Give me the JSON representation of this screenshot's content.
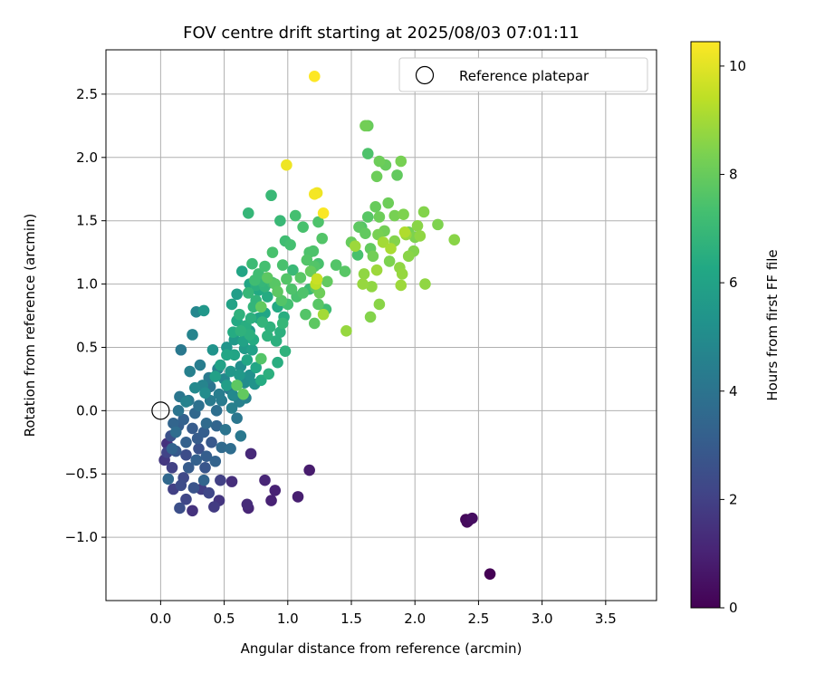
{
  "chart_data": {
    "type": "scatter",
    "title": "FOV centre drift starting at 2025/08/03 07:01:11",
    "xlabel": "Angular distance from reference (arcmin)",
    "ylabel": "Rotation from reference (arcmin)",
    "xlim": [
      -0.43,
      3.9
    ],
    "ylim": [
      -1.5,
      2.85
    ],
    "xticks": [
      0.0,
      0.5,
      1.0,
      1.5,
      2.0,
      2.5,
      3.0,
      3.5
    ],
    "xtick_labels": [
      "0.0",
      "0.5",
      "1.0",
      "1.5",
      "2.0",
      "2.5",
      "3.0",
      "3.5"
    ],
    "yticks": [
      -1.0,
      -0.5,
      0.0,
      0.5,
      1.0,
      1.5,
      2.0,
      2.5
    ],
    "ytick_labels": [
      "−1.0",
      "−0.5",
      "0.0",
      "0.5",
      "1.0",
      "1.5",
      "2.0",
      "2.5"
    ],
    "grid": true,
    "legend": {
      "placement": "top-right",
      "entries": [
        "Reference platepar"
      ]
    },
    "reference_point": {
      "x": 0.0,
      "y": 0.0,
      "label": "Reference platepar"
    },
    "colorbar": {
      "label": "Hours from first FF file",
      "colormap": "viridis",
      "range": [
        0,
        10.45
      ],
      "ticks": [
        0,
        2,
        4,
        6,
        8,
        10
      ],
      "tick_labels": [
        "0",
        "2",
        "4",
        "6",
        "8",
        "10"
      ]
    },
    "points": [
      [
        2.59,
        -1.29,
        0.0
      ],
      [
        2.4,
        -0.86,
        0.2
      ],
      [
        2.42,
        -0.87,
        0.3
      ],
      [
        2.45,
        -0.85,
        0.4
      ],
      [
        2.41,
        -0.88,
        0.3
      ],
      [
        1.17,
        -0.47,
        0.8
      ],
      [
        1.08,
        -0.68,
        0.9
      ],
      [
        0.9,
        -0.63,
        1.0
      ],
      [
        0.82,
        -0.55,
        1.1
      ],
      [
        0.87,
        -0.71,
        1.0
      ],
      [
        0.71,
        -0.34,
        1.2
      ],
      [
        0.69,
        -0.77,
        1.1
      ],
      [
        0.68,
        -0.74,
        1.3
      ],
      [
        0.56,
        -0.56,
        1.4
      ],
      [
        0.46,
        -0.71,
        1.6
      ],
      [
        0.42,
        -0.76,
        1.8
      ],
      [
        0.25,
        -0.79,
        1.5
      ],
      [
        0.2,
        -0.7,
        2.2
      ],
      [
        0.15,
        -0.77,
        2.5
      ],
      [
        0.1,
        -0.62,
        2.0
      ],
      [
        0.05,
        -0.26,
        1.5
      ],
      [
        0.03,
        -0.39,
        1.7
      ],
      [
        0.09,
        -0.45,
        2.0
      ],
      [
        0.18,
        -0.53,
        2.3
      ],
      [
        0.2,
        -0.35,
        2.4
      ],
      [
        0.3,
        -0.3,
        2.6
      ],
      [
        0.35,
        -0.45,
        2.8
      ],
      [
        0.38,
        -0.65,
        2.2
      ],
      [
        0.26,
        -0.61,
        2.7
      ],
      [
        0.12,
        -0.32,
        2.9
      ],
      [
        0.22,
        -0.45,
        3.0
      ],
      [
        0.28,
        -0.39,
        3.2
      ],
      [
        0.34,
        -0.55,
        3.4
      ],
      [
        0.06,
        -0.54,
        3.5
      ],
      [
        0.09,
        -0.3,
        3.3
      ],
      [
        0.14,
        -0.12,
        3.1
      ],
      [
        0.18,
        -0.07,
        3.2
      ],
      [
        0.25,
        -0.14,
        3.0
      ],
      [
        0.4,
        -0.25,
        2.9
      ],
      [
        0.43,
        -0.4,
        3.3
      ],
      [
        0.48,
        -0.29,
        3.6
      ],
      [
        0.55,
        -0.3,
        3.7
      ],
      [
        0.51,
        -0.15,
        4.0
      ],
      [
        0.6,
        -0.06,
        4.1
      ],
      [
        0.44,
        0.0,
        3.8
      ],
      [
        0.36,
        -0.1,
        3.6
      ],
      [
        0.3,
        0.04,
        3.9
      ],
      [
        0.22,
        0.08,
        4.2
      ],
      [
        0.15,
        0.11,
        4.1
      ],
      [
        0.27,
        -0.02,
        3.5
      ],
      [
        0.39,
        0.08,
        4.3
      ],
      [
        0.46,
        0.13,
        4.4
      ],
      [
        0.54,
        0.17,
        4.2
      ],
      [
        0.62,
        0.07,
        4.5
      ],
      [
        0.67,
        0.1,
        4.6
      ],
      [
        0.33,
        0.2,
        4.7
      ],
      [
        0.38,
        0.26,
        4.3
      ],
      [
        0.45,
        0.33,
        4.6
      ],
      [
        0.5,
        0.25,
        4.8
      ],
      [
        0.57,
        0.12,
        4.9
      ],
      [
        0.66,
        0.22,
        5.0
      ],
      [
        0.63,
        0.35,
        5.1
      ],
      [
        0.7,
        0.28,
        5.2
      ],
      [
        0.74,
        0.21,
        5.3
      ],
      [
        0.31,
        0.36,
        4.4
      ],
      [
        0.23,
        0.31,
        4.5
      ],
      [
        0.16,
        0.48,
        4.2
      ],
      [
        0.25,
        0.6,
        4.7
      ],
      [
        0.28,
        0.78,
        4.8
      ],
      [
        0.34,
        0.79,
        5.5
      ],
      [
        0.41,
        0.48,
        5.3
      ],
      [
        0.52,
        0.5,
        5.4
      ],
      [
        0.58,
        0.56,
        5.6
      ],
      [
        0.66,
        0.49,
        5.7
      ],
      [
        0.72,
        0.48,
        5.9
      ],
      [
        0.56,
        0.84,
        6.0
      ],
      [
        0.6,
        0.92,
        5.8
      ],
      [
        0.64,
        1.1,
        6.1
      ],
      [
        0.7,
        1.0,
        6.2
      ],
      [
        0.77,
        0.95,
        6.3
      ],
      [
        0.84,
        0.9,
        6.4
      ],
      [
        0.92,
        0.82,
        6.3
      ],
      [
        0.97,
        0.74,
        6.5
      ],
      [
        0.94,
        0.62,
        6.6
      ],
      [
        0.86,
        0.66,
        6.7
      ],
      [
        0.8,
        0.7,
        6.8
      ],
      [
        0.7,
        0.6,
        6.6
      ],
      [
        0.62,
        0.76,
        6.7
      ],
      [
        0.75,
        0.34,
        6.2
      ],
      [
        0.79,
        0.24,
        6.4
      ],
      [
        0.85,
        0.29,
        6.6
      ],
      [
        0.92,
        0.38,
        6.5
      ],
      [
        0.98,
        0.47,
        6.7
      ],
      [
        0.69,
        1.56,
        6.9
      ],
      [
        0.87,
        1.7,
        7.0
      ],
      [
        0.72,
        1.16,
        7.1
      ],
      [
        0.77,
        1.08,
        7.2
      ],
      [
        0.82,
        1.14,
        7.3
      ],
      [
        0.88,
        1.25,
        7.4
      ],
      [
        0.98,
        1.34,
        7.2
      ],
      [
        1.02,
        1.31,
        7.3
      ],
      [
        1.06,
        1.54,
        7.3
      ],
      [
        1.12,
        1.45,
        7.4
      ],
      [
        1.17,
        1.25,
        7.5
      ],
      [
        1.21,
        1.14,
        7.6
      ],
      [
        1.24,
        1.49,
        7.5
      ],
      [
        1.27,
        1.36,
        7.6
      ],
      [
        1.1,
        1.05,
        7.7
      ],
      [
        1.03,
        0.96,
        7.5
      ],
      [
        0.95,
        0.87,
        7.6
      ],
      [
        0.9,
        1.0,
        7.7
      ],
      [
        0.84,
        1.05,
        7.8
      ],
      [
        0.79,
        0.82,
        7.9
      ],
      [
        1.22,
        0.97,
        7.8
      ],
      [
        1.14,
        0.76,
        7.6
      ],
      [
        1.24,
        0.84,
        7.7
      ],
      [
        1.21,
        0.69,
        7.8
      ],
      [
        0.6,
        0.2,
        7.8
      ],
      [
        0.65,
        0.13,
        7.9
      ],
      [
        0.79,
        0.41,
        7.6
      ],
      [
        1.38,
        1.15,
        7.6
      ],
      [
        1.45,
        1.1,
        7.7
      ],
      [
        1.56,
        1.45,
        7.8
      ],
      [
        1.61,
        1.4,
        7.9
      ],
      [
        1.65,
        1.28,
        7.9
      ],
      [
        1.69,
        1.61,
        8.0
      ],
      [
        1.7,
        1.85,
        8.1
      ],
      [
        1.61,
        2.25,
        8.2
      ],
      [
        1.63,
        2.25,
        8.0
      ],
      [
        1.72,
        1.97,
        8.1
      ],
      [
        1.77,
        1.94,
        8.0
      ],
      [
        1.86,
        1.86,
        7.9
      ],
      [
        1.89,
        1.97,
        8.3
      ],
      [
        1.72,
        1.53,
        8.1
      ],
      [
        1.76,
        1.42,
        8.2
      ],
      [
        1.79,
        1.64,
        8.1
      ],
      [
        1.84,
        1.54,
        8.3
      ],
      [
        1.91,
        1.55,
        8.4
      ],
      [
        1.95,
        1.41,
        8.3
      ],
      [
        2.0,
        1.37,
        8.4
      ],
      [
        2.07,
        1.57,
        8.5
      ],
      [
        2.02,
        1.46,
        8.6
      ],
      [
        2.18,
        1.47,
        8.4
      ],
      [
        2.31,
        1.35,
        8.6
      ],
      [
        1.99,
        1.26,
        8.5
      ],
      [
        1.88,
        1.13,
        8.7
      ],
      [
        1.9,
        1.08,
        8.8
      ],
      [
        2.08,
        1.0,
        8.7
      ],
      [
        1.89,
        0.99,
        8.9
      ],
      [
        1.72,
        0.84,
        8.6
      ],
      [
        1.65,
        0.74,
        8.5
      ],
      [
        1.6,
        1.08,
        8.7
      ],
      [
        1.59,
        1.0,
        8.8
      ],
      [
        1.53,
        1.3,
        8.9
      ],
      [
        1.75,
        1.33,
        9.0
      ],
      [
        1.81,
        1.28,
        9.1
      ],
      [
        1.92,
        1.41,
        9.2
      ],
      [
        1.46,
        0.63,
        8.8
      ],
      [
        1.28,
        0.76,
        9.0
      ],
      [
        1.22,
        1.0,
        9.4
      ],
      [
        1.23,
        1.04,
        9.6
      ],
      [
        0.99,
        1.94,
        10.2
      ],
      [
        1.21,
        1.71,
        10.3
      ],
      [
        1.23,
        1.72,
        10.2
      ],
      [
        1.28,
        1.56,
        10.4
      ],
      [
        1.21,
        2.64,
        10.45
      ],
      [
        1.63,
        2.03,
        7.5
      ],
      [
        1.58,
        1.45,
        7.6
      ],
      [
        1.63,
        1.53,
        7.7
      ],
      [
        1.55,
        1.23,
        7.4
      ],
      [
        1.3,
        0.8,
        7.2
      ],
      [
        1.17,
        0.96,
        7.1
      ],
      [
        1.04,
        1.11,
        7.0
      ],
      [
        0.94,
        1.5,
        7.0
      ],
      [
        0.8,
        1.02,
        6.9
      ],
      [
        0.75,
        0.87,
        6.8
      ],
      [
        0.67,
        0.67,
        6.5
      ],
      [
        0.57,
        0.62,
        6.4
      ],
      [
        0.52,
        0.44,
        6.2
      ],
      [
        0.58,
        0.44,
        6.1
      ],
      [
        0.47,
        0.36,
        6.0
      ],
      [
        0.43,
        0.27,
        5.9
      ],
      [
        0.52,
        0.2,
        5.8
      ],
      [
        0.35,
        0.14,
        5.0
      ],
      [
        0.27,
        0.18,
        4.9
      ],
      [
        0.2,
        0.07,
        4.6
      ],
      [
        0.14,
        0.0,
        4.0
      ],
      [
        0.1,
        -0.1,
        3.4
      ],
      [
        0.08,
        -0.2,
        2.6
      ],
      [
        0.05,
        -0.33,
        2.1
      ],
      [
        0.12,
        -0.17,
        3.7
      ],
      [
        0.2,
        -0.25,
        3.2
      ],
      [
        0.29,
        -0.22,
        3.0
      ],
      [
        0.34,
        -0.17,
        3.1
      ],
      [
        0.44,
        -0.12,
        3.4
      ],
      [
        0.36,
        -0.36,
        3.1
      ],
      [
        0.47,
        -0.55,
        2.0
      ],
      [
        0.32,
        -0.62,
        1.9
      ],
      [
        0.16,
        -0.59,
        2.4
      ],
      [
        0.63,
        -0.2,
        4.2
      ],
      [
        0.56,
        0.02,
        4.5
      ],
      [
        0.48,
        0.08,
        4.3
      ],
      [
        0.39,
        0.19,
        4.0
      ],
      [
        0.7,
        0.63,
        5.6
      ],
      [
        0.77,
        0.73,
        6.0
      ],
      [
        0.82,
        0.77,
        6.2
      ],
      [
        0.88,
        1.01,
        7.1
      ],
      [
        0.74,
        1.03,
        7.2
      ],
      [
        0.69,
        0.93,
        6.9
      ],
      [
        0.73,
        0.82,
        6.8
      ],
      [
        0.84,
        0.59,
        6.7
      ],
      [
        0.91,
        0.55,
        6.6
      ],
      [
        0.96,
        0.69,
        6.9
      ],
      [
        1.0,
        0.84,
        7.3
      ],
      [
        1.07,
        0.9,
        7.4
      ],
      [
        1.12,
        0.93,
        7.5
      ],
      [
        1.15,
        1.19,
        7.6
      ],
      [
        1.2,
        1.26,
        7.5
      ],
      [
        1.24,
        1.16,
        7.4
      ],
      [
        0.96,
        1.15,
        7.4
      ],
      [
        0.99,
        1.04,
        7.6
      ],
      [
        0.92,
        0.94,
        7.8
      ],
      [
        1.31,
        1.02,
        7.9
      ],
      [
        1.18,
        1.1,
        8.0
      ],
      [
        1.25,
        0.93,
        8.1
      ],
      [
        1.5,
        1.33,
        8.0
      ],
      [
        1.67,
        1.22,
        8.2
      ],
      [
        1.71,
        1.39,
        8.3
      ],
      [
        1.8,
        1.18,
        8.4
      ],
      [
        1.84,
        1.34,
        8.5
      ],
      [
        1.95,
        1.22,
        8.6
      ],
      [
        2.04,
        1.38,
        8.7
      ],
      [
        1.93,
        1.39,
        8.8
      ],
      [
        1.7,
        1.11,
        8.9
      ],
      [
        1.66,
        0.98,
        8.7
      ],
      [
        0.6,
        0.71,
        6.3
      ],
      [
        0.65,
        0.55,
        6.0
      ],
      [
        0.55,
        0.31,
        5.5
      ],
      [
        0.62,
        0.28,
        5.6
      ],
      [
        0.68,
        0.4,
        6.2
      ],
      [
        0.73,
        0.56,
        6.4
      ],
      [
        0.75,
        0.99,
        6.6
      ],
      [
        0.82,
        0.98,
        6.8
      ],
      [
        0.71,
        0.73,
        6.6
      ],
      [
        0.63,
        0.63,
        6.7
      ]
    ]
  }
}
